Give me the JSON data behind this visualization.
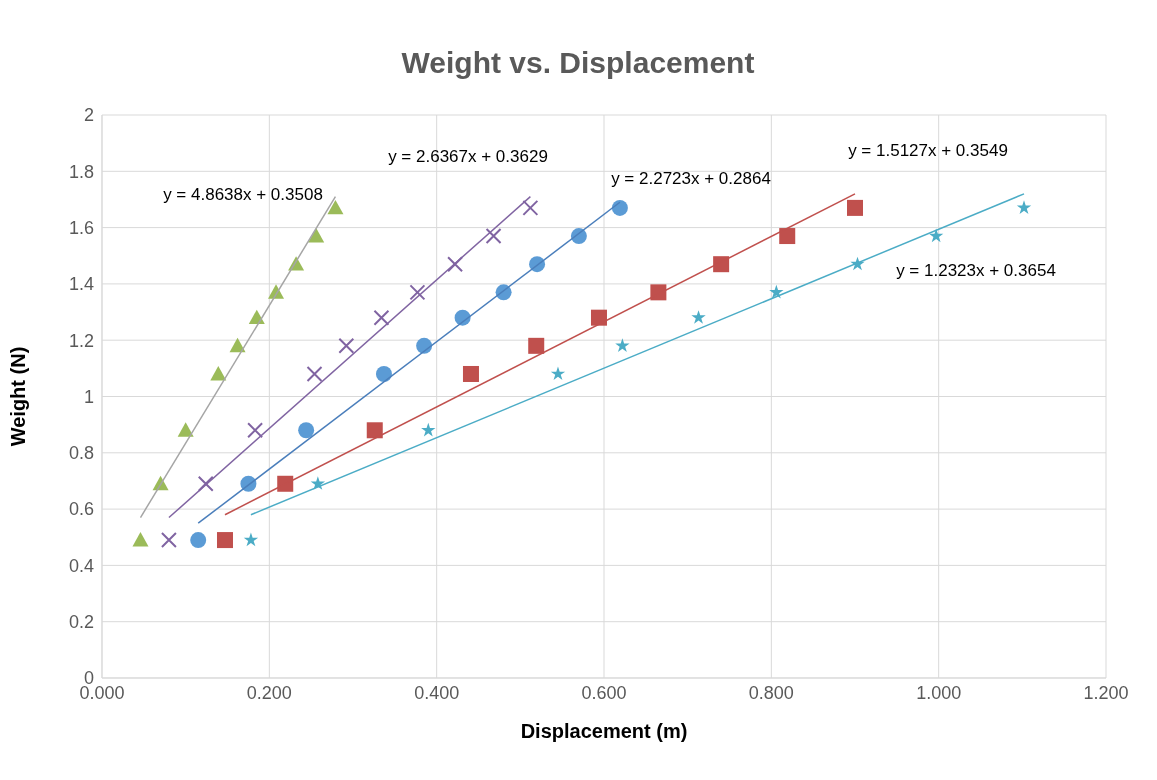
{
  "chart_data": {
    "type": "scatter",
    "title": "Weight vs. Displacement",
    "xlabel": "Displacement (m)",
    "ylabel": "Weight (N)",
    "xlim": [
      0,
      1.2
    ],
    "ylim": [
      0,
      2
    ],
    "xticks": [
      {
        "value": 0,
        "label": "0.000"
      },
      {
        "value": 0.2,
        "label": "0.200"
      },
      {
        "value": 0.4,
        "label": "0.400"
      },
      {
        "value": 0.6,
        "label": "0.600"
      },
      {
        "value": 0.8,
        "label": "0.800"
      },
      {
        "value": 1,
        "label": "1.000"
      },
      {
        "value": 1.2,
        "label": "1.200"
      }
    ],
    "yticks": [
      0,
      0.2,
      0.4,
      0.6,
      0.8,
      1,
      1.2,
      1.4,
      1.6,
      1.8,
      2
    ],
    "grid": true,
    "series": [
      {
        "marker": "triangle",
        "color": "#9bbb59",
        "x": [
          0.046,
          0.07,
          0.1,
          0.139,
          0.162,
          0.185,
          0.208,
          0.232,
          0.256,
          0.279
        ],
        "values": [
          0.49,
          0.69,
          0.88,
          1.08,
          1.18,
          1.28,
          1.37,
          1.47,
          1.57,
          1.67
        ]
      },
      {
        "marker": "cross",
        "color": "#8064a2",
        "x": [
          0.08,
          0.124,
          0.183,
          0.254,
          0.292,
          0.334,
          0.377,
          0.422,
          0.468,
          0.512
        ],
        "values": [
          0.49,
          0.69,
          0.88,
          1.08,
          1.18,
          1.28,
          1.37,
          1.47,
          1.57,
          1.67
        ]
      },
      {
        "marker": "circle",
        "color": "#5b9bd5",
        "x": [
          0.115,
          0.175,
          0.244,
          0.337,
          0.385,
          0.431,
          0.48,
          0.52,
          0.57,
          0.619
        ],
        "values": [
          0.49,
          0.69,
          0.88,
          1.08,
          1.18,
          1.28,
          1.37,
          1.47,
          1.57,
          1.67
        ]
      },
      {
        "marker": "square",
        "color": "#c0504d",
        "x": [
          0.147,
          0.219,
          0.326,
          0.441,
          0.519,
          0.594,
          0.665,
          0.74,
          0.819,
          0.9
        ],
        "values": [
          0.49,
          0.69,
          0.88,
          1.08,
          1.18,
          1.28,
          1.37,
          1.47,
          1.57,
          1.67
        ]
      },
      {
        "marker": "star",
        "color": "#4bacc6",
        "x": [
          0.178,
          0.258,
          0.39,
          0.545,
          0.622,
          0.713,
          0.806,
          0.903,
          0.997,
          1.102
        ],
        "values": [
          0.49,
          0.69,
          0.88,
          1.08,
          1.18,
          1.28,
          1.37,
          1.47,
          1.57,
          1.67
        ]
      },
      {
        "type": "line",
        "marker": "none",
        "color": "#a5a5a5",
        "x": [
          0.046,
          0.279
        ],
        "values": [
          0.57,
          1.71
        ]
      },
      {
        "type": "line",
        "marker": "none",
        "color": "#8064a2",
        "x": [
          0.08,
          0.512
        ],
        "values": [
          0.57,
          1.71
        ]
      },
      {
        "type": "line",
        "marker": "none",
        "color": "#4a7ebb",
        "x": [
          0.115,
          0.619
        ],
        "values": [
          0.55,
          1.69
        ]
      },
      {
        "type": "line",
        "marker": "none",
        "color": "#c0504d",
        "x": [
          0.147,
          0.9
        ],
        "values": [
          0.58,
          1.72
        ]
      },
      {
        "type": "line",
        "marker": "none",
        "color": "#4bacc6",
        "x": [
          0.178,
          1.102
        ],
        "values": [
          0.58,
          1.72
        ]
      }
    ],
    "annotations": [
      "y = 4.8638x + 0.3508",
      "y = 2.6367x + 0.3629",
      "y = 2.2723x + 0.2864",
      "y = 1.5127x + 0.3549",
      "y = 1.2323x + 0.3654"
    ]
  }
}
